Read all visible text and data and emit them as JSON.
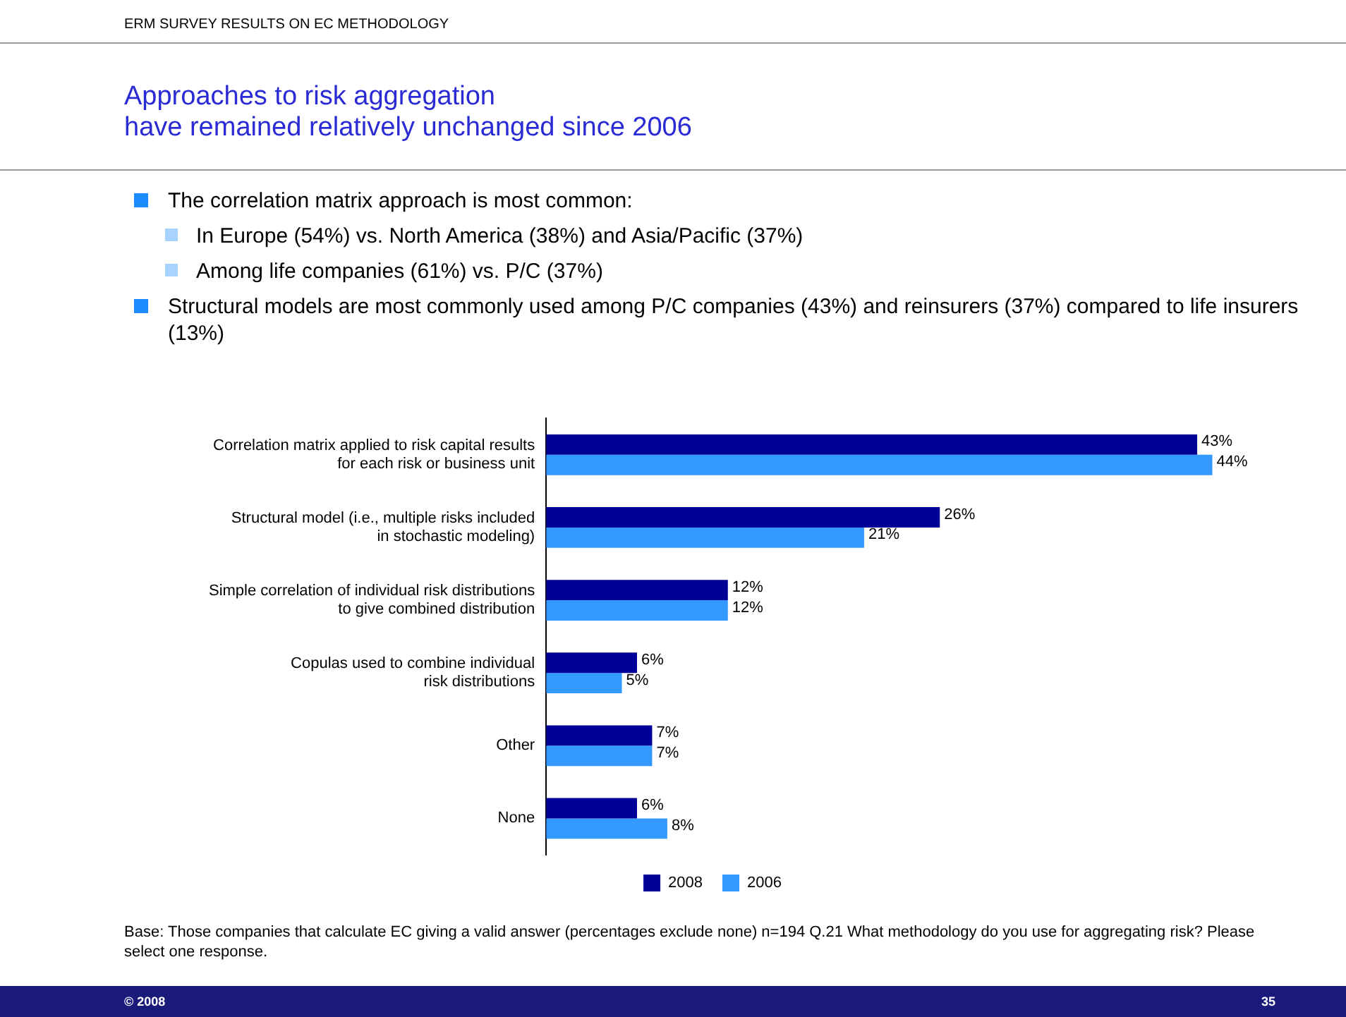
{
  "chart_data": {
    "type": "bar",
    "orientation": "horizontal",
    "subtitle": "ERM SURVEY RESULTS ON EC METHODOLOGY",
    "title": "Approaches to risk aggregation\nhave remained relatively unchanged since 2006",
    "categories": [
      "Correlation matrix applied to risk capital results\nfor each risk or business unit",
      "Structural model (i.e., multiple risks included\nin stochastic modeling)",
      "Simple correlation of individual risk distributions\nto give combined distribution",
      "Copulas used to combine individual\nrisk distributions",
      "Other",
      "None"
    ],
    "series": [
      {
        "name": "2008",
        "color": "#000099",
        "values": [
          43,
          26,
          12,
          6,
          7,
          6
        ],
        "value_labels": [
          "43%",
          "26%",
          "12%",
          "6%",
          "7%",
          "6%"
        ]
      },
      {
        "name": "2006",
        "color": "#3399ff",
        "values": [
          44,
          21,
          12,
          5,
          7,
          8
        ],
        "value_labels": [
          "44%",
          "21%",
          "12%",
          "5%",
          "7%",
          "8%"
        ]
      }
    ],
    "legend": "bottom",
    "annotations": [
      "The correlation matrix approach is most common:",
      "In Europe (54%) vs. North America (38%) and Asia/Pacific (37%)",
      "Among life companies (61%) vs. P/C (37%)",
      "Structural models are most commonly used among P/C companies (43%) and reinsurers (37%) compared to life insurers (13%)",
      "Base: Those companies that calculate EC giving a valid answer (percentages exclude none) n=194 Q.21 What methodology do you use for aggregating risk? Please select one response.",
      "© 2008",
      "35"
    ]
  }
}
